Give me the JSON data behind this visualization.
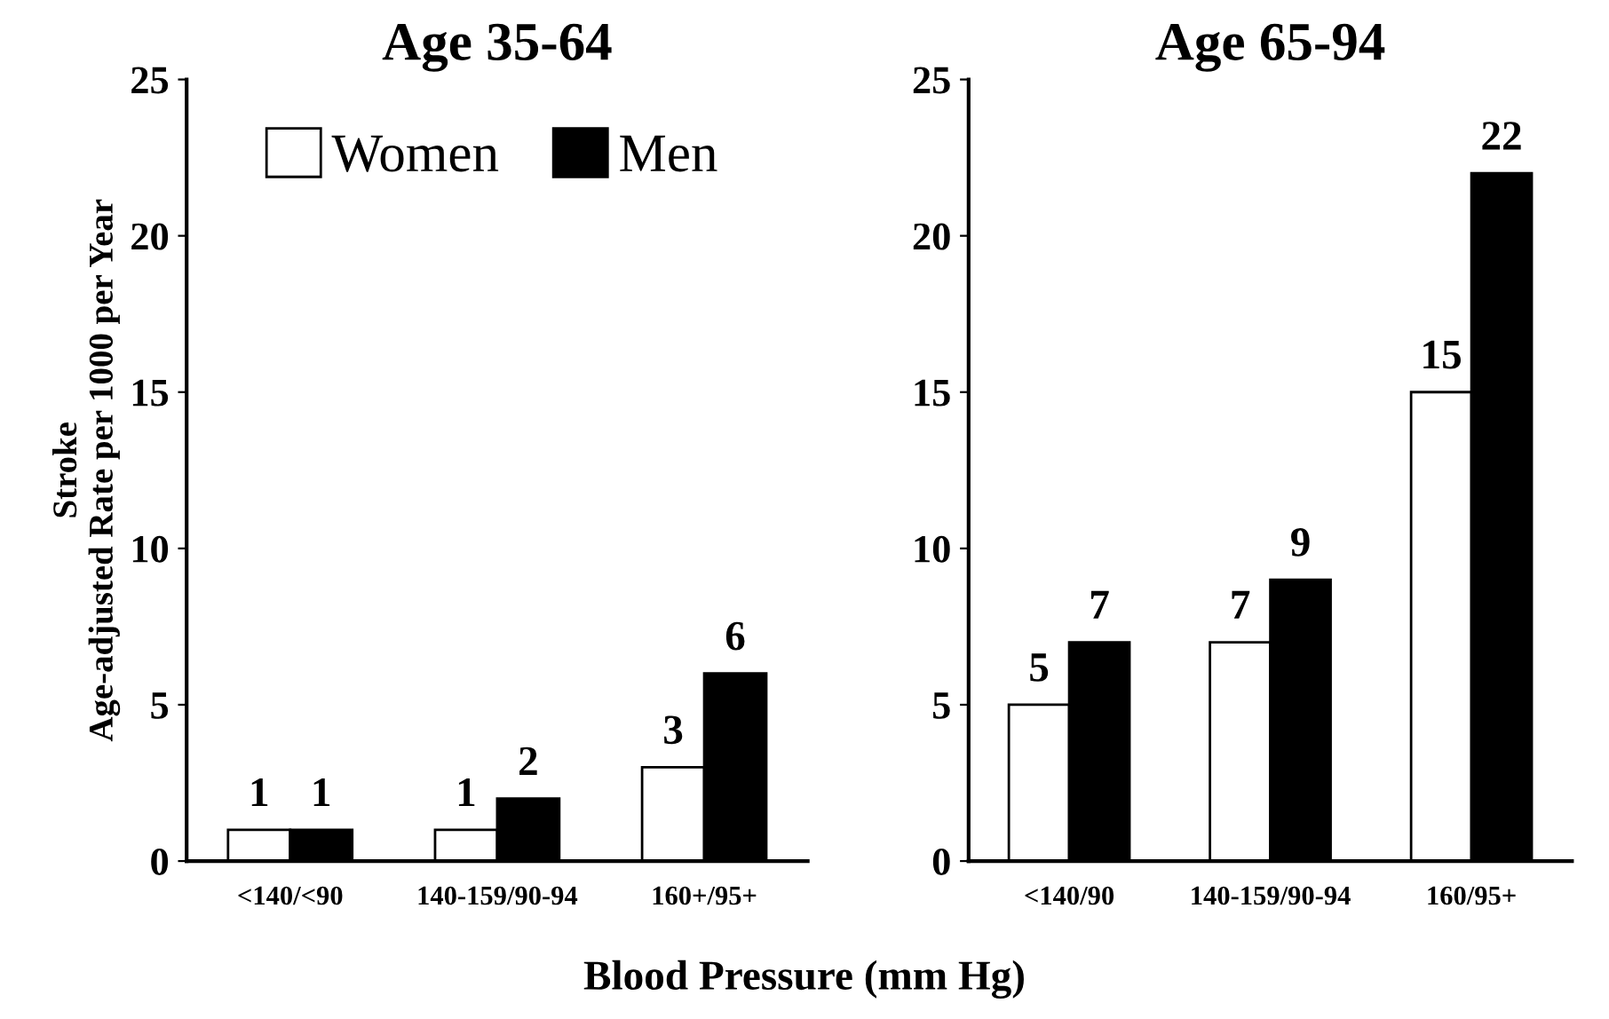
{
  "chart_data": [
    {
      "type": "bar",
      "title": "Age 35-64",
      "ylabel": "Stroke\nAge-adjusted Rate per 1000 per Year",
      "xlabel": "Blood Pressure (mm Hg)",
      "categories": [
        "<140/<90",
        "140-159/90-94",
        "160+/95+"
      ],
      "series": [
        {
          "name": "Women",
          "color": "#ffffff",
          "values": [
            1,
            1,
            3
          ]
        },
        {
          "name": "Men",
          "color": "#000000",
          "values": [
            1,
            2,
            6
          ]
        }
      ],
      "ylim": [
        0,
        25
      ],
      "yticks": [
        0,
        5,
        10,
        15,
        20,
        25
      ],
      "data_labels": true,
      "legend": "top left",
      "grid": false
    },
    {
      "type": "bar",
      "title": "Age 65-94",
      "categories": [
        "<140/90",
        "140-159/90-94",
        "160/95+"
      ],
      "series": [
        {
          "color": "#ffffff",
          "values": [
            5,
            7,
            15
          ]
        },
        {
          "color": "#000000",
          "values": [
            7,
            9,
            22
          ]
        }
      ],
      "ylim": [
        0,
        25
      ],
      "yticks": [
        0,
        5,
        10,
        15,
        20,
        25
      ],
      "data_labels": true,
      "grid": false
    }
  ]
}
